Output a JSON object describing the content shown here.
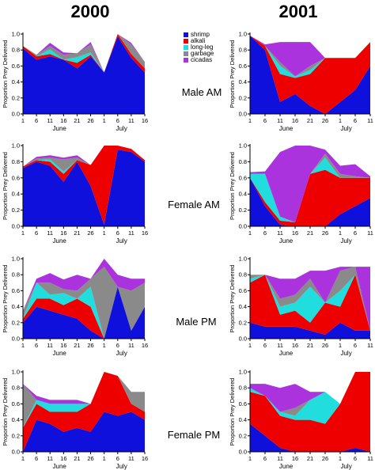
{
  "column_titles": [
    "2000",
    "2001"
  ],
  "row_labels": [
    "Male AM",
    "Female AM",
    "Male PM",
    "Female PM"
  ],
  "colors": {
    "shrimp": "#1010dd",
    "alkali": "#ee0000",
    "long-leg": "#22dddd",
    "garbage": "#8a8a8a",
    "cicadas": "#aa33dd"
  },
  "legend": {
    "entries": [
      {
        "label": "shrimp",
        "key": "shrimp"
      },
      {
        "label": "alkali",
        "key": "alkali"
      },
      {
        "label": "long-leg",
        "key": "long-leg"
      },
      {
        "label": "garbage",
        "key": "garbage"
      },
      {
        "label": "cicadas",
        "key": "cicadas"
      }
    ]
  },
  "chart_data": [
    {
      "type": "area",
      "panel": "2000 Male AM",
      "ylabel": "Proportion Prey Delivered",
      "ylim": [
        0,
        1
      ],
      "yticks": [
        "0.0",
        "0.2",
        "0.4",
        "0.6",
        "0.8",
        "1.0"
      ],
      "x": [
        "1",
        "6",
        "11",
        "16",
        "21",
        "26",
        "1",
        "6",
        "11",
        "16"
      ],
      "month_labels": [
        "June",
        "July"
      ],
      "series": [
        {
          "name": "shrimp",
          "values": [
            0.82,
            0.68,
            0.72,
            0.68,
            0.57,
            0.72,
            0.52,
            0.97,
            0.7,
            0.52
          ]
        },
        {
          "name": "alkali",
          "values": [
            0.03,
            0.04,
            0.03,
            0.0,
            0.07,
            0.02,
            0.0,
            0.03,
            0.05,
            0.05
          ]
        },
        {
          "name": "long-leg",
          "values": [
            0.0,
            0.0,
            0.06,
            0.0,
            0.07,
            0.03,
            0.0,
            0.0,
            0.0,
            0.0
          ]
        },
        {
          "name": "garbage",
          "values": [
            0.0,
            0.02,
            0.04,
            0.06,
            0.05,
            0.1,
            0.0,
            0.0,
            0.12,
            0.08
          ]
        },
        {
          "name": "cicadas",
          "values": [
            0.0,
            0.0,
            0.04,
            0.03,
            0.0,
            0.03,
            0.0,
            0.0,
            0.02,
            0.0
          ]
        }
      ]
    },
    {
      "type": "area",
      "panel": "2001 Male AM",
      "ylabel": "Proportion Prey Delivered",
      "ylim": [
        0,
        1
      ],
      "yticks": [
        "0.0",
        "0.2",
        "0.4",
        "0.6",
        "0.8",
        "1.0"
      ],
      "x": [
        "1",
        "6",
        "11",
        "16",
        "21",
        "26",
        "1",
        "6",
        "11"
      ],
      "month_labels": [
        "June",
        "July"
      ],
      "series": [
        {
          "name": "shrimp",
          "values": [
            0.98,
            0.8,
            0.15,
            0.25,
            0.1,
            0.0,
            0.15,
            0.3,
            0.6
          ]
        },
        {
          "name": "alkali",
          "values": [
            0.0,
            0.05,
            0.35,
            0.2,
            0.4,
            0.7,
            0.55,
            0.4,
            0.3
          ]
        },
        {
          "name": "long-leg",
          "values": [
            0.0,
            0.0,
            0.1,
            0.02,
            0.05,
            0.0,
            0.0,
            0.0,
            0.0
          ]
        },
        {
          "name": "garbage",
          "values": [
            0.0,
            0.0,
            0.05,
            0.0,
            0.05,
            0.0,
            0.0,
            0.0,
            0.0
          ]
        },
        {
          "name": "cicadas",
          "values": [
            0.0,
            0.02,
            0.25,
            0.43,
            0.3,
            0.0,
            0.0,
            0.0,
            0.0
          ]
        }
      ]
    },
    {
      "type": "area",
      "panel": "2000 Female AM",
      "ylabel": "Proportion Prey Delivered",
      "ylim": [
        0,
        1
      ],
      "yticks": [
        "0.0",
        "0.2",
        "0.4",
        "0.6",
        "0.8",
        "1.0"
      ],
      "x": [
        "1",
        "6",
        "11",
        "16",
        "21",
        "26",
        "1",
        "6",
        "11",
        "16"
      ],
      "month_labels": [
        "June",
        "July"
      ],
      "series": [
        {
          "name": "shrimp",
          "values": [
            0.72,
            0.8,
            0.75,
            0.55,
            0.8,
            0.5,
            0.02,
            0.95,
            0.92,
            0.8
          ]
        },
        {
          "name": "alkali",
          "values": [
            0.02,
            0.02,
            0.05,
            0.1,
            0.02,
            0.26,
            0.98,
            0.05,
            0.04,
            0.02
          ]
        },
        {
          "name": "long-leg",
          "values": [
            0.0,
            0.0,
            0.03,
            0.03,
            0.0,
            0.0,
            0.0,
            0.0,
            0.0,
            0.0
          ]
        },
        {
          "name": "garbage",
          "values": [
            0.0,
            0.02,
            0.02,
            0.15,
            0.03,
            0.0,
            0.0,
            0.0,
            0.0,
            0.0
          ]
        },
        {
          "name": "cicadas",
          "values": [
            0.0,
            0.02,
            0.03,
            0.02,
            0.03,
            0.0,
            0.0,
            0.0,
            0.0,
            0.0
          ]
        }
      ]
    },
    {
      "type": "area",
      "panel": "2001 Female AM",
      "ylabel": "Proportion Prey Delivered",
      "ylim": [
        0,
        1
      ],
      "yticks": [
        "0.0",
        "0.2",
        "0.4",
        "0.6",
        "0.8",
        "1.0"
      ],
      "x": [
        "1",
        "6",
        "11",
        "16",
        "21",
        "26",
        "1",
        "6",
        "11"
      ],
      "month_labels": [
        "June",
        "July"
      ],
      "series": [
        {
          "name": "shrimp",
          "values": [
            0.6,
            0.25,
            0.02,
            0.0,
            0.0,
            0.0,
            0.15,
            0.25,
            0.35
          ]
        },
        {
          "name": "alkali",
          "values": [
            0.0,
            0.05,
            0.05,
            0.05,
            0.65,
            0.7,
            0.45,
            0.35,
            0.25
          ]
        },
        {
          "name": "long-leg",
          "values": [
            0.05,
            0.35,
            0.05,
            0.0,
            0.0,
            0.15,
            0.0,
            0.0,
            0.0
          ]
        },
        {
          "name": "garbage",
          "values": [
            0.0,
            0.0,
            0.0,
            0.0,
            0.0,
            0.05,
            0.05,
            0.02,
            0.0
          ]
        },
        {
          "name": "cicadas",
          "values": [
            0.02,
            0.03,
            0.8,
            0.95,
            0.35,
            0.05,
            0.1,
            0.15,
            0.02
          ]
        }
      ]
    },
    {
      "type": "area",
      "panel": "2000 Male PM",
      "ylabel": "Proportion Prey Delivered",
      "ylim": [
        0,
        1
      ],
      "yticks": [
        "0.0",
        "0.2",
        "0.4",
        "0.6",
        "0.8",
        "1.0"
      ],
      "x": [
        "1",
        "6",
        "11",
        "16",
        "21",
        "26",
        "1",
        "6",
        "11",
        "16"
      ],
      "month_labels": [
        "June",
        "July"
      ],
      "series": [
        {
          "name": "shrimp",
          "values": [
            0.2,
            0.4,
            0.35,
            0.3,
            0.25,
            0.1,
            0.0,
            0.65,
            0.1,
            0.4
          ]
        },
        {
          "name": "alkali",
          "values": [
            0.05,
            0.1,
            0.15,
            0.12,
            0.25,
            0.3,
            0.0,
            0.0,
            0.0,
            0.0
          ]
        },
        {
          "name": "long-leg",
          "values": [
            0.0,
            0.2,
            0.05,
            0.15,
            0.0,
            0.25,
            0.0,
            0.0,
            0.0,
            0.0
          ]
        },
        {
          "name": "garbage",
          "values": [
            0.1,
            0.0,
            0.15,
            0.05,
            0.1,
            0.1,
            0.9,
            0.0,
            0.5,
            0.3
          ]
        },
        {
          "name": "cicadas",
          "values": [
            0.0,
            0.05,
            0.12,
            0.12,
            0.2,
            0.0,
            0.1,
            0.15,
            0.15,
            0.05
          ]
        }
      ]
    },
    {
      "type": "area",
      "panel": "2001 Male PM",
      "ylabel": "Proportion Prey Delivered",
      "ylim": [
        0,
        1
      ],
      "yticks": [
        "0.0",
        "0.2",
        "0.4",
        "0.6",
        "0.8",
        "1.0"
      ],
      "x": [
        "1",
        "6",
        "11",
        "16",
        "21",
        "26",
        "1",
        "6",
        "11"
      ],
      "month_labels": [
        "June",
        "July"
      ],
      "series": [
        {
          "name": "shrimp",
          "values": [
            0.2,
            0.15,
            0.15,
            0.15,
            0.1,
            0.05,
            0.2,
            0.1,
            0.1
          ]
        },
        {
          "name": "alkali",
          "values": [
            0.5,
            0.65,
            0.15,
            0.2,
            0.1,
            0.4,
            0.2,
            0.7,
            0.0
          ]
        },
        {
          "name": "long-leg",
          "values": [
            0.05,
            0.0,
            0.1,
            0.1,
            0.45,
            0.0,
            0.2,
            0.0,
            0.0
          ]
        },
        {
          "name": "garbage",
          "values": [
            0.05,
            0.0,
            0.1,
            0.1,
            0.1,
            0.0,
            0.25,
            0.1,
            0.0
          ]
        },
        {
          "name": "cicadas",
          "values": [
            0.0,
            0.0,
            0.25,
            0.2,
            0.1,
            0.4,
            0.05,
            0.0,
            0.8
          ]
        }
      ]
    },
    {
      "type": "area",
      "panel": "2000 Female PM",
      "ylabel": "Proportion Prey Delivered",
      "ylim": [
        0,
        1
      ],
      "yticks": [
        "0.0",
        "0.2",
        "0.4",
        "0.6",
        "0.8",
        "1.0"
      ],
      "x": [
        "1",
        "6",
        "11",
        "16",
        "21",
        "26",
        "1",
        "6",
        "11",
        "16"
      ],
      "month_labels": [
        "June",
        "July"
      ],
      "series": [
        {
          "name": "shrimp",
          "values": [
            0.0,
            0.4,
            0.35,
            0.25,
            0.3,
            0.25,
            0.5,
            0.45,
            0.5,
            0.4
          ]
        },
        {
          "name": "alkali",
          "values": [
            0.3,
            0.2,
            0.15,
            0.25,
            0.2,
            0.35,
            0.5,
            0.5,
            0.1,
            0.1
          ]
        },
        {
          "name": "long-leg",
          "values": [
            0.0,
            0.05,
            0.1,
            0.1,
            0.1,
            0.0,
            0.0,
            0.0,
            0.0,
            0.0
          ]
        },
        {
          "name": "garbage",
          "values": [
            0.55,
            0.0,
            0.0,
            0.0,
            0.0,
            0.0,
            0.0,
            0.0,
            0.15,
            0.25
          ]
        },
        {
          "name": "cicadas",
          "values": [
            0.0,
            0.05,
            0.05,
            0.05,
            0.05,
            0.0,
            0.0,
            0.0,
            0.0,
            0.0
          ]
        }
      ]
    },
    {
      "type": "area",
      "panel": "2001 Female PM",
      "ylabel": "Proportion Prey Delivered",
      "ylim": [
        0,
        1
      ],
      "yticks": [
        "0.0",
        "0.2",
        "0.4",
        "0.6",
        "0.8",
        "1.0"
      ],
      "x": [
        "1",
        "6",
        "11",
        "16",
        "21",
        "26",
        "1",
        "6",
        "11"
      ],
      "month_labels": [
        "June",
        "July"
      ],
      "series": [
        {
          "name": "shrimp",
          "values": [
            0.35,
            0.2,
            0.05,
            0.0,
            0.0,
            0.0,
            0.0,
            0.05,
            0.0
          ]
        },
        {
          "name": "alkali",
          "values": [
            0.4,
            0.5,
            0.4,
            0.4,
            0.4,
            0.35,
            0.6,
            0.95,
            1.0
          ]
        },
        {
          "name": "long-leg",
          "values": [
            0.05,
            0.0,
            0.05,
            0.05,
            0.25,
            0.4,
            0.0,
            0.0,
            0.0
          ]
        },
        {
          "name": "garbage",
          "values": [
            0.0,
            0.0,
            0.0,
            0.1,
            0.0,
            0.0,
            0.0,
            0.0,
            0.0
          ]
        },
        {
          "name": "cicadas",
          "values": [
            0.05,
            0.15,
            0.3,
            0.3,
            0.1,
            0.0,
            0.0,
            0.0,
            0.0
          ]
        }
      ]
    }
  ]
}
